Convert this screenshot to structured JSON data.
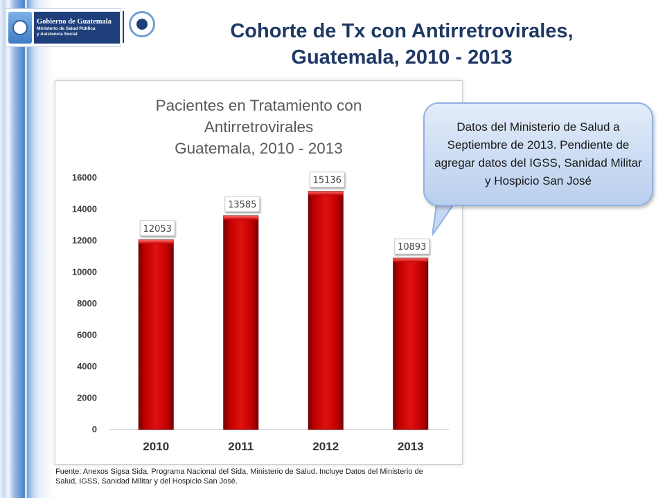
{
  "slide": {
    "title_line1": "Cohorte de Tx con Antirretrovirales,",
    "title_line2": "Guatemala, 2010 - 2013"
  },
  "logos": {
    "gov_line1": "Gobierno de Guatemala",
    "gov_line2": "Ministerio de Salud Pública",
    "gov_line3": "y Asistencia Social"
  },
  "callout": {
    "text": "Datos del Ministerio de Salud a Septiembre de 2013. Pendiente de agregar datos del IGSS, Sanidad Militar y Hospicio San José"
  },
  "source_note": "Fuente: Anexos Sigsa Sida, Programa Nacional del Sida, Ministerio de Salud. Incluye Datos del Ministerio de Salud, IGSS, Sanidad Militar y del Hospicio San José.",
  "chart_data": {
    "type": "bar",
    "title_lines": [
      "Pacientes en Tratamiento con",
      "Antirretrovirales",
      "Guatemala, 2010 - 2013"
    ],
    "categories": [
      "2010",
      "2011",
      "2012",
      "2013"
    ],
    "values": [
      12053,
      13585,
      15136,
      10893
    ],
    "data_labels": [
      "12053",
      "13585",
      "15136",
      "10893"
    ],
    "yticks": [
      "0",
      "2000",
      "4000",
      "6000",
      "8000",
      "10000",
      "12000",
      "14000",
      "16000"
    ],
    "ylim": [
      0,
      16000
    ],
    "grid": false,
    "legend": "none",
    "bar_color": "#c00000"
  }
}
